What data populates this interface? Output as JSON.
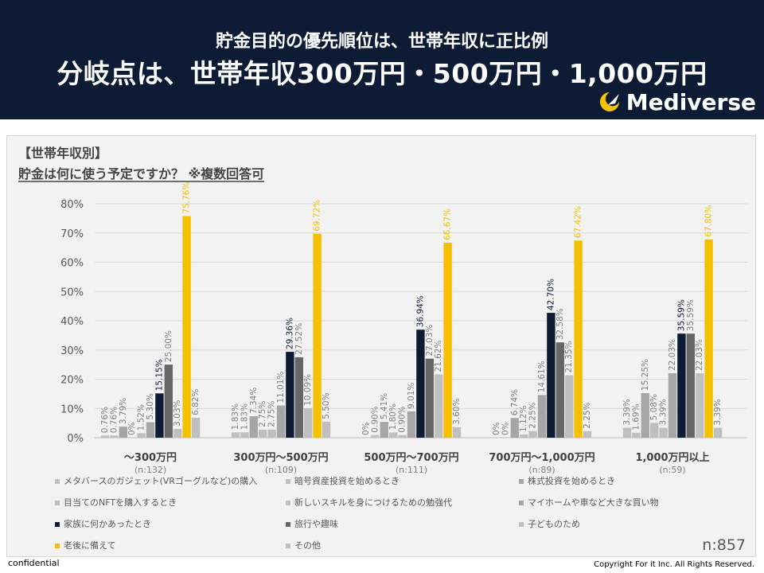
{
  "header": {
    "line1": "貯金目的の優先順位は、世帯年収に正比例",
    "line2": "分岐点は、世帯年収300万円・500万円・1,000万円",
    "logo_text": "Mediverse",
    "bg_color": "#0d1b35",
    "logo_color": "#f5c400"
  },
  "footer": {
    "left": "confidential",
    "right": "Copyright For it Inc. All Rights Reserved."
  },
  "chart_data": {
    "type": "bar",
    "title_line1": "【世帯年収別】",
    "title_line2": "貯金は何に使う予定ですか？ ※複数回答可",
    "note": "n:857",
    "ylim": [
      0,
      80
    ],
    "yticks": [
      "0%",
      "10%",
      "20%",
      "30%",
      "40%",
      "50%",
      "60%",
      "70%",
      "80%"
    ],
    "categories": [
      "〜300万円",
      "300万円〜500万円",
      "500万円〜700万円",
      "700万円〜1,000万円",
      "1,000万円以上"
    ],
    "category_n": [
      "(n:132)",
      "(n:109)",
      "(n:111)",
      "(n:89)",
      "(n:59)"
    ],
    "series": [
      {
        "name": "メタバースのガジェット(VRゴーグルなど)の購入",
        "color": "#bfbfbf",
        "labels": [
          "0.76%",
          "1.83%",
          "0%",
          "0%",
          "3.39%"
        ],
        "values": [
          0.76,
          1.83,
          0,
          0,
          3.39
        ]
      },
      {
        "name": "暗号資産投資を始めるとき",
        "color": "#bfbfbf",
        "labels": [
          "0.76%",
          "1.83%",
          "0.90%",
          "0%",
          "1.69%"
        ],
        "values": [
          0.76,
          1.83,
          0.9,
          0,
          1.69
        ]
      },
      {
        "name": "株式投資を始めるとき",
        "color": "#a6a6a6",
        "labels": [
          "3.79%",
          "7.34%",
          "5.41%",
          "6.74%",
          "15.25%"
        ],
        "values": [
          3.79,
          7.34,
          5.41,
          6.74,
          15.25
        ]
      },
      {
        "name": "目当てのNFTを購入するとき",
        "color": "#bfbfbf",
        "labels": [
          "0%",
          "2.75%",
          "1.80%",
          "1.12%",
          "5.08%"
        ],
        "values": [
          0,
          2.75,
          1.8,
          1.12,
          5.08
        ]
      },
      {
        "name": "新しいスキルを身につけるための勉強代",
        "color": "#bfbfbf",
        "labels": [
          "1.52%",
          "2.75%",
          "0.90%",
          "2.25%",
          "3.39%"
        ],
        "values": [
          1.52,
          2.75,
          0.9,
          2.25,
          3.39
        ]
      },
      {
        "name": "マイホームや車など大きな買い物",
        "color": "#a6a6a6",
        "labels": [
          "5.30%",
          "11.01%",
          "9.01%",
          "14.61%",
          "22.03%"
        ],
        "values": [
          5.3,
          11.01,
          9.01,
          14.61,
          22.03
        ]
      },
      {
        "name": "家族に何かあったとき",
        "color": "#0d1b35",
        "labels": [
          "15.15%",
          "29.36%",
          "36.94%",
          "42.70%",
          "35.59%"
        ],
        "values": [
          15.15,
          29.36,
          36.94,
          42.7,
          35.59
        ]
      },
      {
        "name": "旅行や趣味",
        "color": "#666666",
        "labels": [
          "25.00%",
          "27.52%",
          "27.03%",
          "32.58%",
          "35.59%"
        ],
        "values": [
          25.0,
          27.52,
          27.03,
          32.58,
          35.59
        ]
      },
      {
        "name": "子どものため",
        "color": "#bfbfbf",
        "labels": [
          "3.03%",
          "10.09%",
          "21.62%",
          "21.35%",
          "22.03%"
        ],
        "values": [
          3.03,
          10.09,
          21.62,
          21.35,
          22.03
        ]
      },
      {
        "name": "老後に備えて",
        "color": "#f5c000",
        "labels": [
          "75.76%",
          "69.72%",
          "66.67%",
          "67.42%",
          "67.80%"
        ],
        "values": [
          75.76,
          69.72,
          66.67,
          67.42,
          67.8
        ]
      },
      {
        "name": "その他",
        "color": "#bfbfbf",
        "labels": [
          "6.82%",
          "5.50%",
          "3.60%",
          "2.25%",
          "3.39%"
        ],
        "values": [
          6.82,
          5.5,
          3.6,
          2.25,
          3.39
        ]
      }
    ]
  }
}
